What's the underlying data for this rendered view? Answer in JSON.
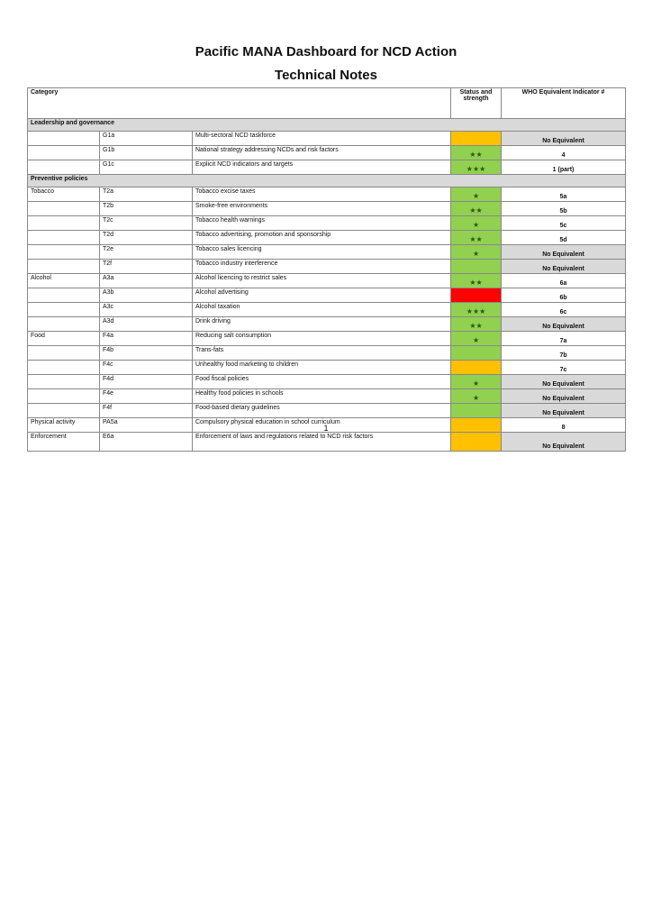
{
  "title": "Pacific MANA Dashboard for NCD Action",
  "subtitle": "Technical Notes",
  "headers": {
    "category": "Category",
    "status": "Status and strength",
    "who": "WHO Equivalent Indicator #"
  },
  "colors": {
    "green": "#92D050",
    "amber": "#FFC000",
    "red": "#FF0000",
    "grey": "#D9D9D9"
  },
  "sections": [
    {
      "label": "Leadership and governance",
      "rows": [
        {
          "category": "",
          "code": "G1a",
          "desc": "Multi-sectoral NCD taskforce",
          "status": "amber",
          "stars": "",
          "who": "No Equivalent"
        },
        {
          "category": "",
          "code": "G1b",
          "desc": "National strategy addressing NCDs and risk factors",
          "status": "green",
          "stars": "★★",
          "who": "4"
        },
        {
          "category": "",
          "code": "G1c",
          "desc": "Explicit NCD indicators and targets",
          "status": "green",
          "stars": "★★★",
          "who": "1 (part)"
        }
      ]
    },
    {
      "label": "Preventive policies",
      "rows": [
        {
          "category": "Tobacco",
          "code": "T2a",
          "desc": "Tobacco excise taxes",
          "status": "green",
          "stars": "★",
          "who": "5a"
        },
        {
          "category": "",
          "code": "T2b",
          "desc": "Smoke-free environments",
          "status": "green",
          "stars": "★★",
          "who": "5b"
        },
        {
          "category": "",
          "code": "T2c",
          "desc": "Tobacco health warnings",
          "status": "green",
          "stars": "★",
          "who": "5c"
        },
        {
          "category": "",
          "code": "T2d",
          "desc": "Tobacco advertising, promotion and sponsorship",
          "status": "green",
          "stars": "★★",
          "who": "5d"
        },
        {
          "category": "",
          "code": "T2e",
          "desc": "Tobacco sales licencing",
          "status": "green",
          "stars": "★",
          "who": "No Equivalent"
        },
        {
          "category": "",
          "code": "T2f",
          "desc": "Tobacco industry interference",
          "status": "green",
          "stars": "",
          "who": "No Equivalent"
        },
        {
          "category": "Alcohol",
          "code": "A3a",
          "desc": "Alcohol licencing to restrict sales",
          "status": "green",
          "stars": "★★",
          "who": "6a"
        },
        {
          "category": "",
          "code": "A3b",
          "desc": "Alcohol advertising",
          "status": "red",
          "stars": "",
          "who": "6b"
        },
        {
          "category": "",
          "code": "A3c",
          "desc": "Alcohol taxation",
          "status": "green",
          "stars": "★★★",
          "who": "6c"
        },
        {
          "category": "",
          "code": "A3d",
          "desc": "Drink driving",
          "status": "green",
          "stars": "★★",
          "who": "No Equivalent"
        },
        {
          "category": "Food",
          "code": "F4a",
          "desc": "Reducing salt consumption",
          "status": "green",
          "stars": "★",
          "who": "7a"
        },
        {
          "category": "",
          "code": "F4b",
          "desc": "Trans-fats",
          "status": "green",
          "stars": "",
          "who": "7b"
        },
        {
          "category": "",
          "code": "F4c",
          "desc": "Unhealthy food marketing to children",
          "status": "amber",
          "stars": "",
          "who": "7c"
        },
        {
          "category": "",
          "code": "F4d",
          "desc": "Food fiscal policies",
          "status": "green",
          "stars": "★",
          "who": "No Equivalent"
        },
        {
          "category": "",
          "code": "F4e",
          "desc": "Healthy food policies in schools",
          "status": "green",
          "stars": "★",
          "who": "No Equivalent"
        },
        {
          "category": "",
          "code": "F4f",
          "desc": "Food-based dietary guidelines",
          "status": "green",
          "stars": "",
          "who": "No Equivalent"
        },
        {
          "category": "Physical activity",
          "code": "PA5a",
          "desc": "Compulsory physical education in school curriculum",
          "status": "amber",
          "stars": "",
          "who": "8"
        },
        {
          "category": "Enforcement",
          "code": "E6a",
          "desc": "Enforcement of laws and regulations related to NCD risk factors",
          "status": "amber",
          "stars": "",
          "who": "No Equivalent"
        }
      ]
    }
  ],
  "page_number": "1"
}
